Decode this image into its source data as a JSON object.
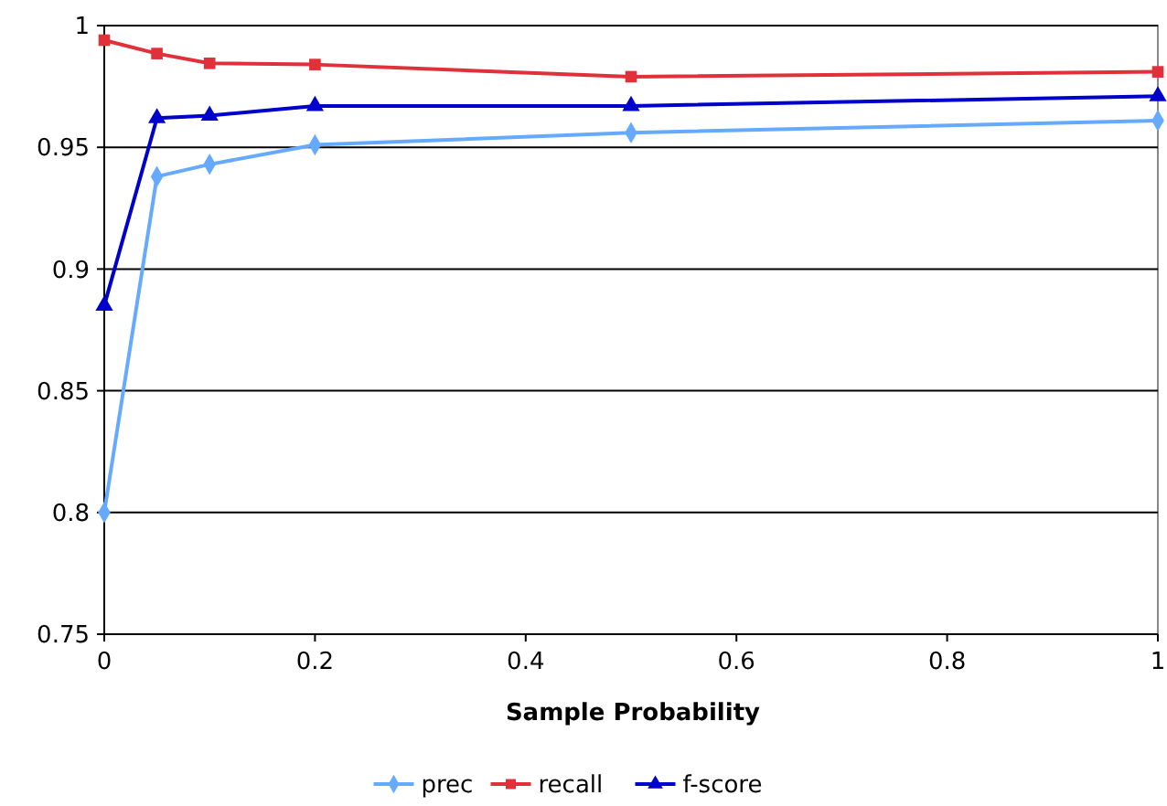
{
  "chart_data": {
    "type": "line",
    "xlabel": "Sample Probability",
    "x": [
      0,
      0.05,
      0.1,
      0.2,
      0.5,
      1
    ],
    "xlim": [
      0,
      1
    ],
    "xticks": [
      0,
      0.2,
      0.4,
      0.6,
      0.8,
      1
    ],
    "ylim": [
      0.75,
      1
    ],
    "yticks": [
      0.75,
      0.8,
      0.85,
      0.9,
      0.95,
      1
    ],
    "grid": "y",
    "legend": "bottom",
    "series": [
      {
        "name": "prec",
        "color": "#66aaff",
        "marker": "diamond",
        "values": [
          0.8,
          0.938,
          0.943,
          0.951,
          0.956,
          0.961
        ]
      },
      {
        "name": "recall",
        "color": "#e0303a",
        "marker": "square",
        "values": [
          0.994,
          0.9885,
          0.9845,
          0.984,
          0.979,
          0.981
        ]
      },
      {
        "name": "f-score",
        "color": "#0000cc",
        "marker": "triangle",
        "values": [
          0.885,
          0.962,
          0.963,
          0.967,
          0.967,
          0.971
        ]
      }
    ]
  }
}
